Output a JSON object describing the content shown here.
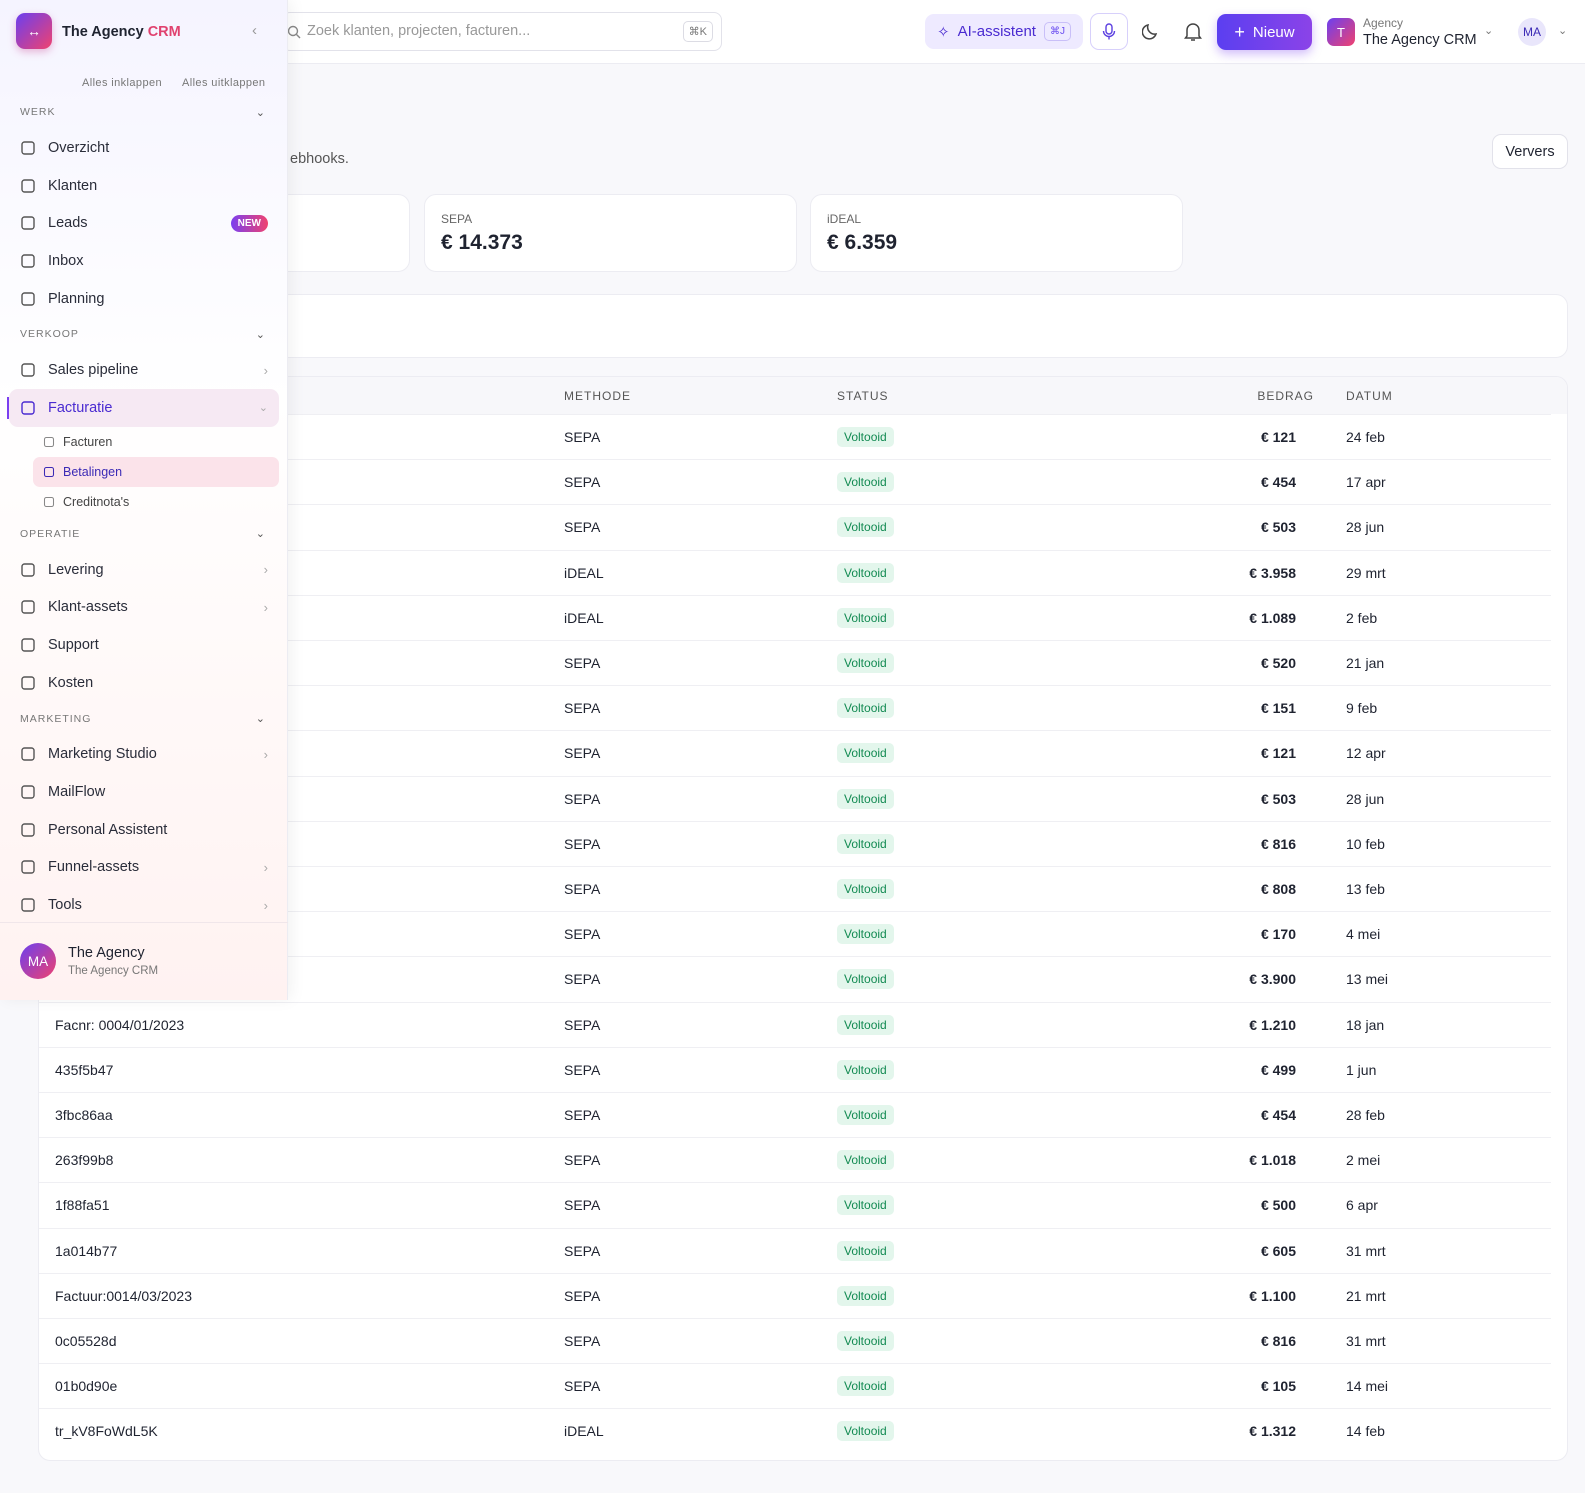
{
  "header": {
    "search_placeholder": "Zoek klanten, projecten, facturen...",
    "search_shortcut": "⌘K",
    "ai_button": "AI-assistent",
    "ai_shortcut": "⌘J",
    "new_button": "Nieuw",
    "org_avatar": "T",
    "org_label": "Agency",
    "org_name": "The Agency CRM",
    "user_avatar": "MA"
  },
  "sidebar": {
    "brand_name": "The Agency",
    "brand_accent": "CRM",
    "collapse_all": "Alles inklappen",
    "expand_all": "Alles uitklappen",
    "sections": [
      {
        "title": "WERK",
        "items": [
          {
            "label": "Overzicht"
          },
          {
            "label": "Klanten"
          },
          {
            "label": "Leads",
            "badge": "NEW"
          },
          {
            "label": "Inbox"
          },
          {
            "label": "Planning"
          }
        ]
      },
      {
        "title": "VERKOOP",
        "items": [
          {
            "label": "Sales pipeline",
            "chevron": "right"
          },
          {
            "label": "Facturatie",
            "chevron": "down",
            "active": true,
            "children": [
              {
                "label": "Facturen"
              },
              {
                "label": "Betalingen",
                "active": true
              },
              {
                "label": "Creditnota's"
              }
            ]
          }
        ]
      },
      {
        "title": "OPERATIE",
        "items": [
          {
            "label": "Levering",
            "chevron": "right"
          },
          {
            "label": "Klant-assets",
            "chevron": "right"
          },
          {
            "label": "Support"
          },
          {
            "label": "Kosten"
          }
        ]
      },
      {
        "title": "MARKETING",
        "items": [
          {
            "label": "Marketing Studio",
            "chevron": "right"
          },
          {
            "label": "MailFlow"
          },
          {
            "label": "Personal Assistent"
          },
          {
            "label": "Funnel-assets",
            "chevron": "right"
          },
          {
            "label": "Tools",
            "chevron": "right"
          }
        ]
      }
    ],
    "footer": {
      "avatar": "MA",
      "name": "The Agency",
      "subtitle": "The Agency CRM"
    }
  },
  "page": {
    "subtitle_fragment": "ebhooks.",
    "refresh_button": "Ververs",
    "stats": [
      {
        "label": "SEPA",
        "value": "€ 14.373"
      },
      {
        "label": "iDEAL",
        "value": "€ 6.359"
      }
    ]
  },
  "table": {
    "columns": [
      "METHODE",
      "STATUS",
      "BEDRAG",
      "DATUM"
    ],
    "rows": [
      {
        "method": "SEPA",
        "status": "Voltooid",
        "amount": "€ 121",
        "date": "24 feb"
      },
      {
        "method": "SEPA",
        "status": "Voltooid",
        "amount": "€ 454",
        "date": "17 apr"
      },
      {
        "method": "SEPA",
        "status": "Voltooid",
        "amount": "€ 503",
        "date": "28 jun"
      },
      {
        "method": "iDEAL",
        "status": "Voltooid",
        "amount": "€ 3.958",
        "date": "29 mrt"
      },
      {
        "method": "iDEAL",
        "status": "Voltooid",
        "amount": "€ 1.089",
        "date": "2 feb"
      },
      {
        "method": "SEPA",
        "status": "Voltooid",
        "amount": "€ 520",
        "date": "21 jan"
      },
      {
        "method": "SEPA",
        "status": "Voltooid",
        "amount": "€ 151",
        "date": "9 feb"
      },
      {
        "method": "SEPA",
        "status": "Voltooid",
        "amount": "€ 121",
        "date": "12 apr"
      },
      {
        "method": "SEPA",
        "status": "Voltooid",
        "amount": "€ 503",
        "date": "28 jun"
      },
      {
        "method": "SEPA",
        "status": "Voltooid",
        "amount": "€ 816",
        "date": "10 feb"
      },
      {
        "method": "SEPA",
        "status": "Voltooid",
        "amount": "€ 808",
        "date": "13 feb"
      },
      {
        "method": "SEPA",
        "status": "Voltooid",
        "amount": "€ 170",
        "date": "4 mei"
      },
      {
        "method": "SEPA",
        "status": "Voltooid",
        "amount": "€ 3.900",
        "date": "13 mei"
      },
      {
        "id": "Facnr: 0004/01/2023",
        "method": "SEPA",
        "status": "Voltooid",
        "amount": "€ 1.210",
        "date": "18 jan"
      },
      {
        "id": "435f5b47",
        "method": "SEPA",
        "status": "Voltooid",
        "amount": "€ 499",
        "date": "1 jun"
      },
      {
        "id": "3fbc86aa",
        "method": "SEPA",
        "status": "Voltooid",
        "amount": "€ 454",
        "date": "28 feb"
      },
      {
        "id": "263f99b8",
        "method": "SEPA",
        "status": "Voltooid",
        "amount": "€ 1.018",
        "date": "2 mei"
      },
      {
        "id": "1f88fa51",
        "method": "SEPA",
        "status": "Voltooid",
        "amount": "€ 500",
        "date": "6 apr"
      },
      {
        "id": "1a014b77",
        "method": "SEPA",
        "status": "Voltooid",
        "amount": "€ 605",
        "date": "31 mrt"
      },
      {
        "id": "Factuur:0014/03/2023",
        "method": "SEPA",
        "status": "Voltooid",
        "amount": "€ 1.100",
        "date": "21 mrt"
      },
      {
        "id": "0c05528d",
        "method": "SEPA",
        "status": "Voltooid",
        "amount": "€ 816",
        "date": "31 mrt"
      },
      {
        "id": "01b0d90e",
        "method": "SEPA",
        "status": "Voltooid",
        "amount": "€ 105",
        "date": "14 mei"
      },
      {
        "id": "tr_kV8FoWdL5K",
        "method": "iDEAL",
        "status": "Voltooid",
        "amount": "€ 1.312",
        "date": "14 feb"
      }
    ]
  }
}
